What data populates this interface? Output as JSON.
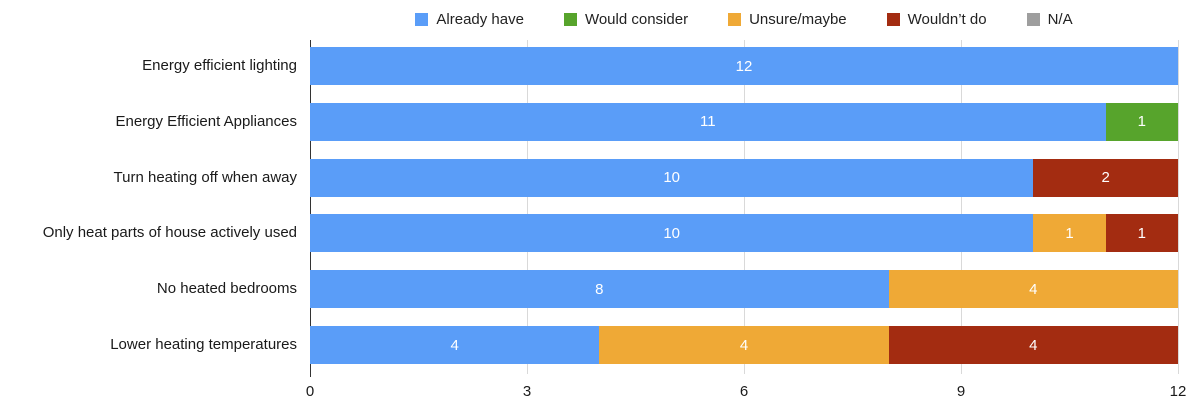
{
  "chart_data": {
    "type": "bar",
    "orientation": "horizontal",
    "stacked": true,
    "title": "",
    "categories": [
      "Energy efficient lighting",
      "Energy Efficient Appliances",
      "Turn heating off when away",
      "Only heat parts of house actively used",
      "No heated bedrooms",
      "Lower heating temperatures"
    ],
    "series": [
      {
        "name": "Already have",
        "color": "#5A9DF8",
        "values": [
          12,
          11,
          10,
          10,
          8,
          4
        ]
      },
      {
        "name": "Would consider",
        "color": "#57A42C",
        "values": [
          0,
          1,
          0,
          0,
          0,
          0
        ]
      },
      {
        "name": "Unsure/maybe",
        "color": "#EFA936",
        "values": [
          0,
          0,
          0,
          1,
          4,
          4
        ]
      },
      {
        "name": "Wouldn’t do",
        "color": "#A32C11",
        "values": [
          0,
          0,
          2,
          1,
          0,
          4
        ]
      },
      {
        "name": "N/A",
        "color": "#9E9E9E",
        "values": [
          0,
          0,
          0,
          0,
          0,
          0
        ]
      }
    ],
    "xlim": [
      0,
      12
    ],
    "xticks": [
      0,
      3,
      6,
      9,
      12
    ],
    "grid": true,
    "legend_position": "top",
    "bar_label_color": "#ffffff",
    "axis_text_color": "#1a1a1a",
    "gridline_color": "#d9d9d9",
    "baseline_color": "#333333"
  }
}
